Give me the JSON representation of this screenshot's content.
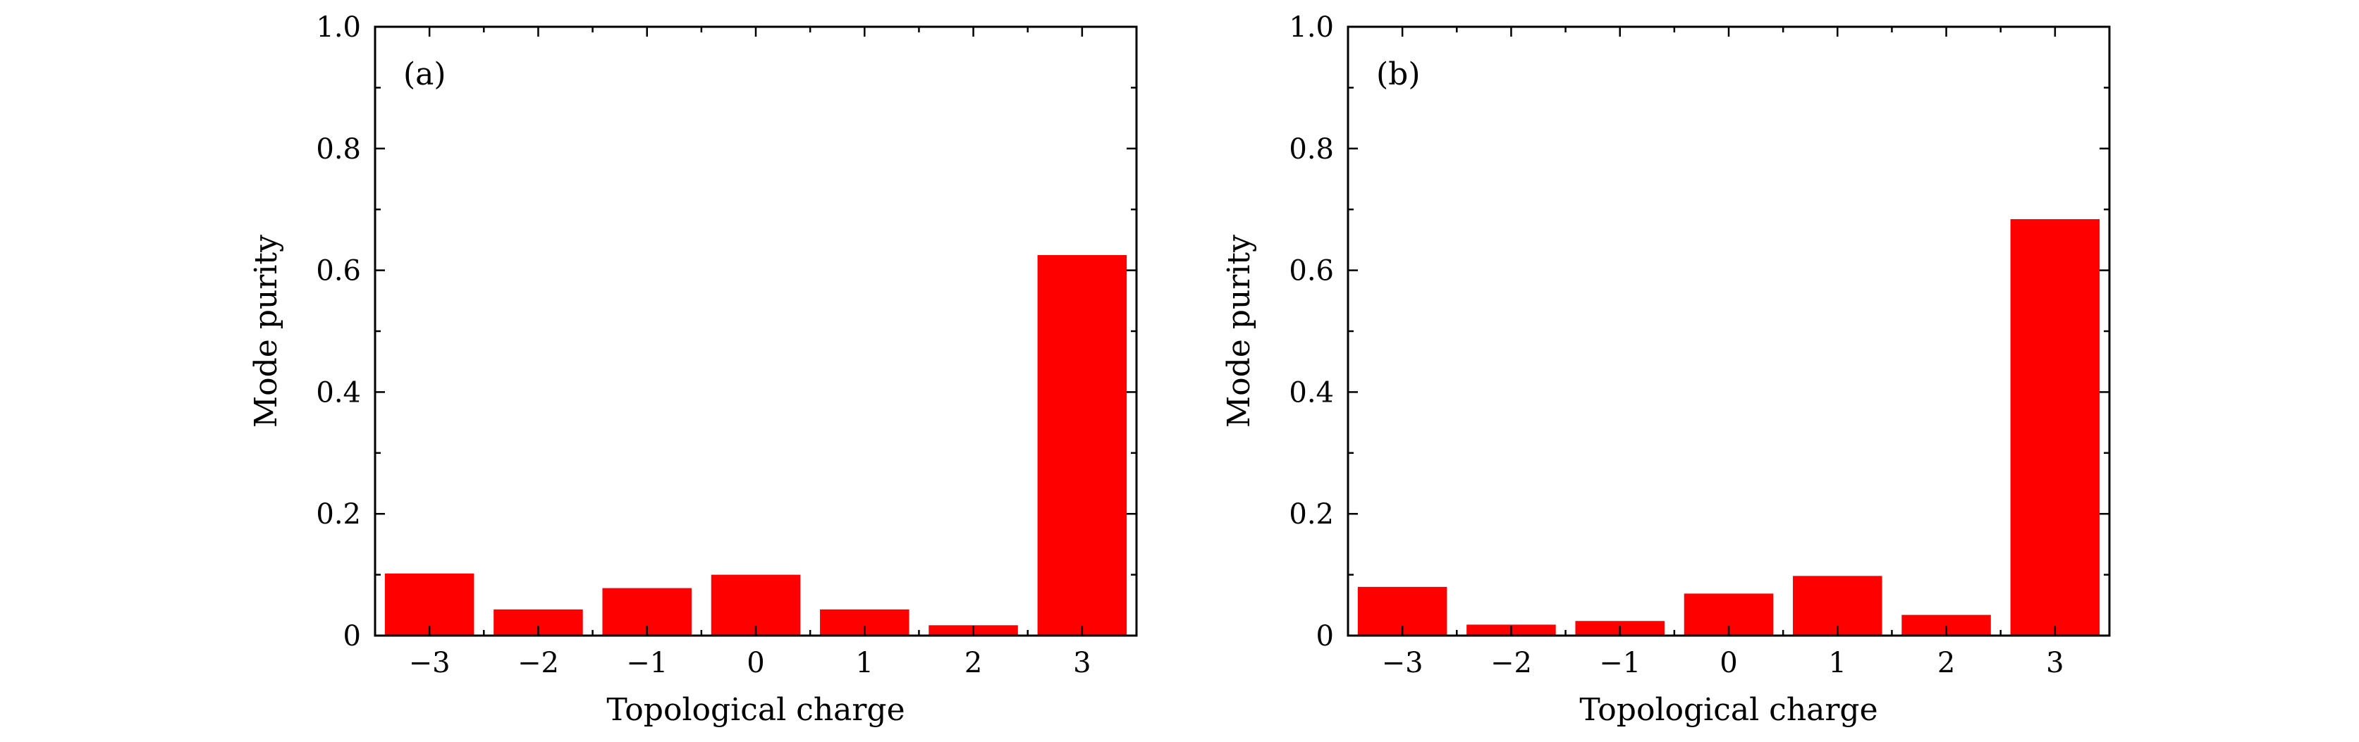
{
  "chart_data": [
    {
      "type": "bar",
      "panel_label": "(a)",
      "categories": [
        "−3",
        "−2",
        "−1",
        "0",
        "1",
        "2",
        "3"
      ],
      "values": [
        0.102,
        0.043,
        0.078,
        0.1,
        0.043,
        0.017,
        0.625
      ],
      "xlabel": "Topological charge",
      "ylabel": "Mode purity",
      "ylim": [
        0,
        1.0
      ],
      "yticks": [
        "0",
        "0.2",
        "0.4",
        "0.6",
        "0.8",
        "1.0"
      ],
      "bar_color": "#ff0000",
      "grid": false
    },
    {
      "type": "bar",
      "panel_label": "(b)",
      "categories": [
        "−3",
        "−2",
        "−1",
        "0",
        "1",
        "2",
        "3"
      ],
      "values": [
        0.08,
        0.018,
        0.024,
        0.069,
        0.098,
        0.034,
        0.684
      ],
      "xlabel": "Topological charge",
      "ylabel": "Mode purity",
      "ylim": [
        0,
        1.0
      ],
      "yticks": [
        "0",
        "0.2",
        "0.4",
        "0.6",
        "0.8",
        "1.0"
      ],
      "bar_color": "#ff0000",
      "grid": false
    }
  ]
}
